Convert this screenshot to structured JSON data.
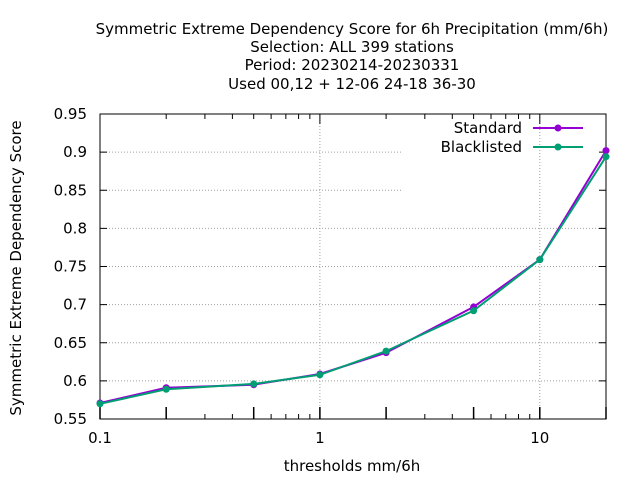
{
  "chart_data": {
    "type": "line",
    "title_lines": [
      "Symmetric Extreme Dependency Score  for 6h Precipitation (mm/6h)",
      "Selection: ALL    399 stations",
      "Period: 20230214-20230331",
      "Used  00,12  + 12-06 24-18 36-30"
    ],
    "xlabel": "thresholds mm/6h",
    "ylabel": "Symmetric Extreme Dependency Score",
    "xscale": "log",
    "xlim": [
      0.1,
      20
    ],
    "ylim": [
      0.55,
      0.95
    ],
    "x_ticks": [
      0.1,
      1,
      10
    ],
    "x_tick_labels": [
      "0.1",
      "1",
      "10"
    ],
    "y_ticks": [
      0.55,
      0.6,
      0.65,
      0.7,
      0.75,
      0.8,
      0.85,
      0.9,
      0.95
    ],
    "y_tick_labels": [
      "0.55",
      "0.6",
      "0.65",
      "0.7",
      "0.75",
      "0.8",
      "0.85",
      "0.9",
      "0.95"
    ],
    "grid": true,
    "legend_position": "top-right",
    "x": [
      0.1,
      0.2,
      0.5,
      1,
      2,
      5,
      10,
      20
    ],
    "series": [
      {
        "name": "Standard",
        "color": "#9400d3",
        "values": [
          0.571,
          0.591,
          0.595,
          0.609,
          0.637,
          0.697,
          0.759,
          0.902
        ]
      },
      {
        "name": "Blacklisted",
        "color": "#009e73",
        "values": [
          0.57,
          0.589,
          0.596,
          0.608,
          0.639,
          0.692,
          0.759,
          0.894
        ]
      }
    ]
  }
}
